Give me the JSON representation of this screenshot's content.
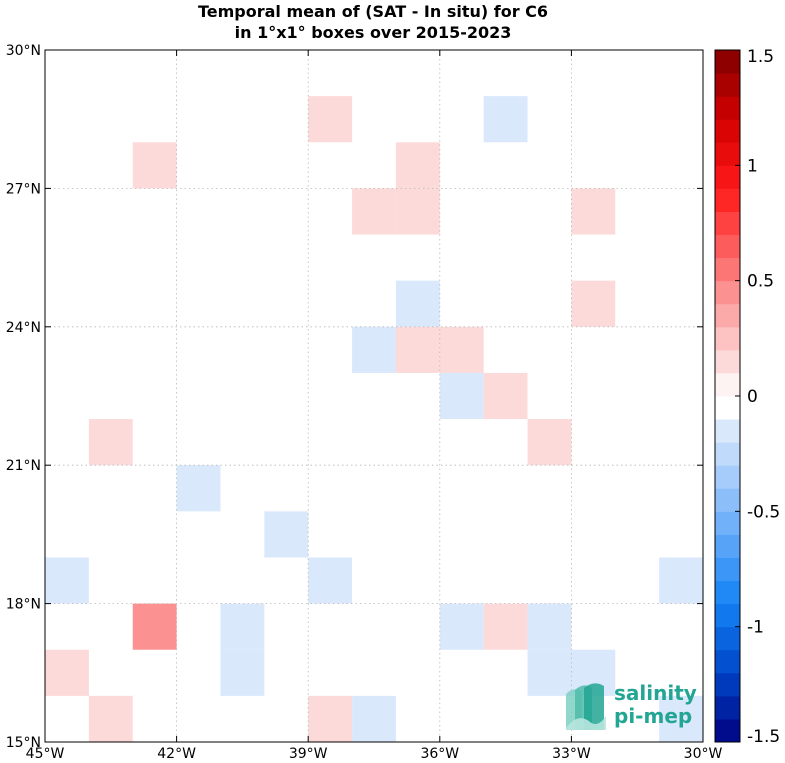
{
  "chart_data": {
    "type": "heatmap",
    "title_line1": "Temporal mean of (SAT - In situ) for C6",
    "title_line2": "in 1°x1° boxes over 2015-2023",
    "xlim": [
      -45,
      -30
    ],
    "ylim": [
      15,
      30
    ],
    "x_ticks": [
      {
        "value": -45,
        "label": "45°W"
      },
      {
        "value": -42,
        "label": "42°W"
      },
      {
        "value": -39,
        "label": "39°W"
      },
      {
        "value": -36,
        "label": "36°W"
      },
      {
        "value": -33,
        "label": "33°W"
      },
      {
        "value": -30,
        "label": "30°W"
      }
    ],
    "y_ticks": [
      {
        "value": 15,
        "label": "15°N"
      },
      {
        "value": 18,
        "label": "18°N"
      },
      {
        "value": 21,
        "label": "21°N"
      },
      {
        "value": 24,
        "label": "24°N"
      },
      {
        "value": 27,
        "label": "27°N"
      },
      {
        "value": 30,
        "label": "30°N"
      }
    ],
    "grid": true,
    "colorbar": {
      "min": -1.5,
      "max": 1.5,
      "step": 0.1,
      "ticks": [
        {
          "value": 1.5,
          "label": "1.5"
        },
        {
          "value": 1,
          "label": "1"
        },
        {
          "value": 0.5,
          "label": "0.5"
        },
        {
          "value": 0,
          "label": "0"
        },
        {
          "value": -0.5,
          "label": "-0.5"
        },
        {
          "value": -1,
          "label": "-1"
        },
        {
          "value": -1.5,
          "label": "-1.5"
        }
      ]
    },
    "cells": [
      {
        "lon": -39,
        "lat": 28,
        "value": 0.15
      },
      {
        "lon": -35,
        "lat": 28,
        "value": -0.15
      },
      {
        "lon": -43,
        "lat": 27,
        "value": 0.15
      },
      {
        "lon": -37,
        "lat": 27,
        "value": 0.15
      },
      {
        "lon": -38,
        "lat": 26,
        "value": 0.15
      },
      {
        "lon": -37,
        "lat": 26,
        "value": 0.15
      },
      {
        "lon": -33,
        "lat": 26,
        "value": 0.15
      },
      {
        "lon": -37,
        "lat": 24,
        "value": -0.15
      },
      {
        "lon": -33,
        "lat": 24,
        "value": 0.15
      },
      {
        "lon": -38,
        "lat": 23,
        "value": -0.15
      },
      {
        "lon": -37,
        "lat": 23,
        "value": 0.15
      },
      {
        "lon": -36,
        "lat": 23,
        "value": 0.15
      },
      {
        "lon": -36,
        "lat": 22,
        "value": -0.15
      },
      {
        "lon": -35,
        "lat": 22,
        "value": 0.15
      },
      {
        "lon": -44,
        "lat": 21,
        "value": 0.15
      },
      {
        "lon": -34,
        "lat": 21,
        "value": 0.15
      },
      {
        "lon": -42,
        "lat": 20,
        "value": -0.15
      },
      {
        "lon": -40,
        "lat": 19,
        "value": -0.15
      },
      {
        "lon": -45,
        "lat": 18,
        "value": -0.15
      },
      {
        "lon": -39,
        "lat": 18,
        "value": -0.15
      },
      {
        "lon": -31,
        "lat": 18,
        "value": -0.15
      },
      {
        "lon": -43,
        "lat": 17,
        "value": 0.45
      },
      {
        "lon": -41,
        "lat": 17,
        "value": -0.15
      },
      {
        "lon": -36,
        "lat": 17,
        "value": -0.15
      },
      {
        "lon": -35,
        "lat": 17,
        "value": 0.15
      },
      {
        "lon": -34,
        "lat": 17,
        "value": -0.15
      },
      {
        "lon": -45,
        "lat": 16,
        "value": 0.15
      },
      {
        "lon": -41,
        "lat": 16,
        "value": -0.15
      },
      {
        "lon": -34,
        "lat": 16,
        "value": -0.15
      },
      {
        "lon": -33,
        "lat": 16,
        "value": -0.15
      },
      {
        "lon": -44,
        "lat": 15,
        "value": 0.15
      },
      {
        "lon": -39,
        "lat": 15,
        "value": 0.15
      },
      {
        "lon": -38,
        "lat": 15,
        "value": -0.15
      },
      {
        "lon": -31,
        "lat": 15,
        "value": -0.15
      }
    ]
  },
  "logo": {
    "line1": "salinity",
    "line2": "pi-mep",
    "color": "#22a593"
  }
}
